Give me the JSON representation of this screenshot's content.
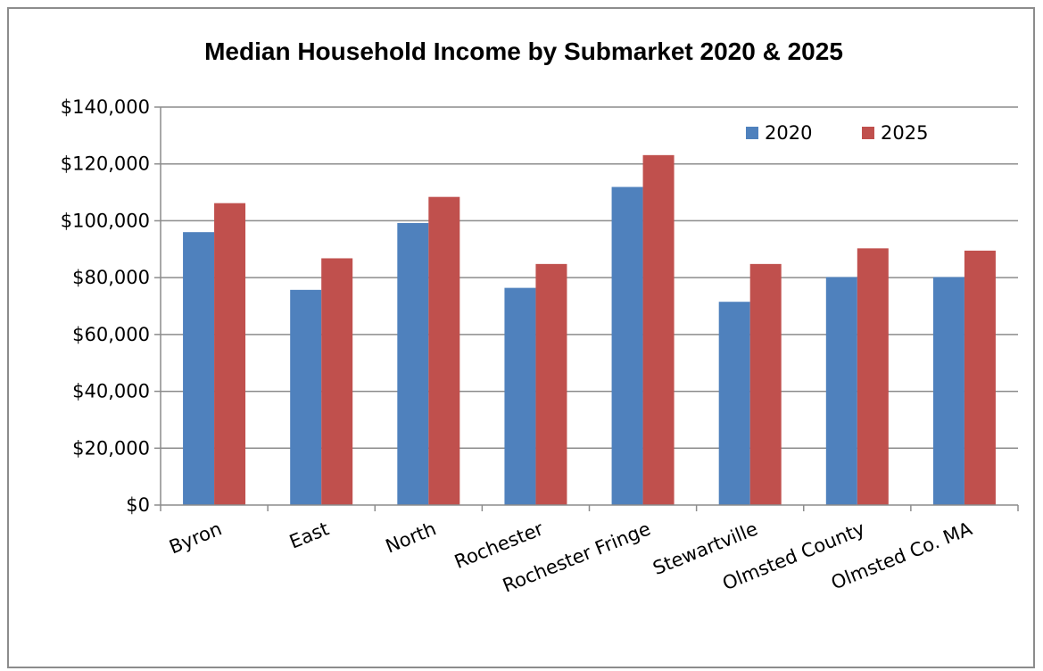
{
  "chart_data": {
    "type": "bar",
    "title": "Median Household Income by Submarket 2020 & 2025",
    "categories": [
      "Byron",
      "East",
      "North",
      "Rochester",
      "Rochester Fringe",
      "Stewartville",
      "Olmsted County",
      "Olmsted Co. MA"
    ],
    "series": [
      {
        "name": "2020",
        "color": "#4f81bd",
        "values": [
          96000,
          75700,
          99200,
          76400,
          111900,
          71500,
          80200,
          80200
        ]
      },
      {
        "name": "2025",
        "color": "#c0504d",
        "values": [
          106200,
          86800,
          108400,
          84800,
          123100,
          84800,
          90300,
          89500
        ]
      }
    ],
    "yticks": [
      "$0",
      "$20,000",
      "$40,000",
      "$60,000",
      "$80,000",
      "$100,000",
      "$120,000",
      "$140,000"
    ],
    "ylim": [
      0,
      140000
    ],
    "ystep": 20000,
    "grid": true,
    "legend_position": "top-right",
    "gridline_color": "#8c8c8c"
  }
}
